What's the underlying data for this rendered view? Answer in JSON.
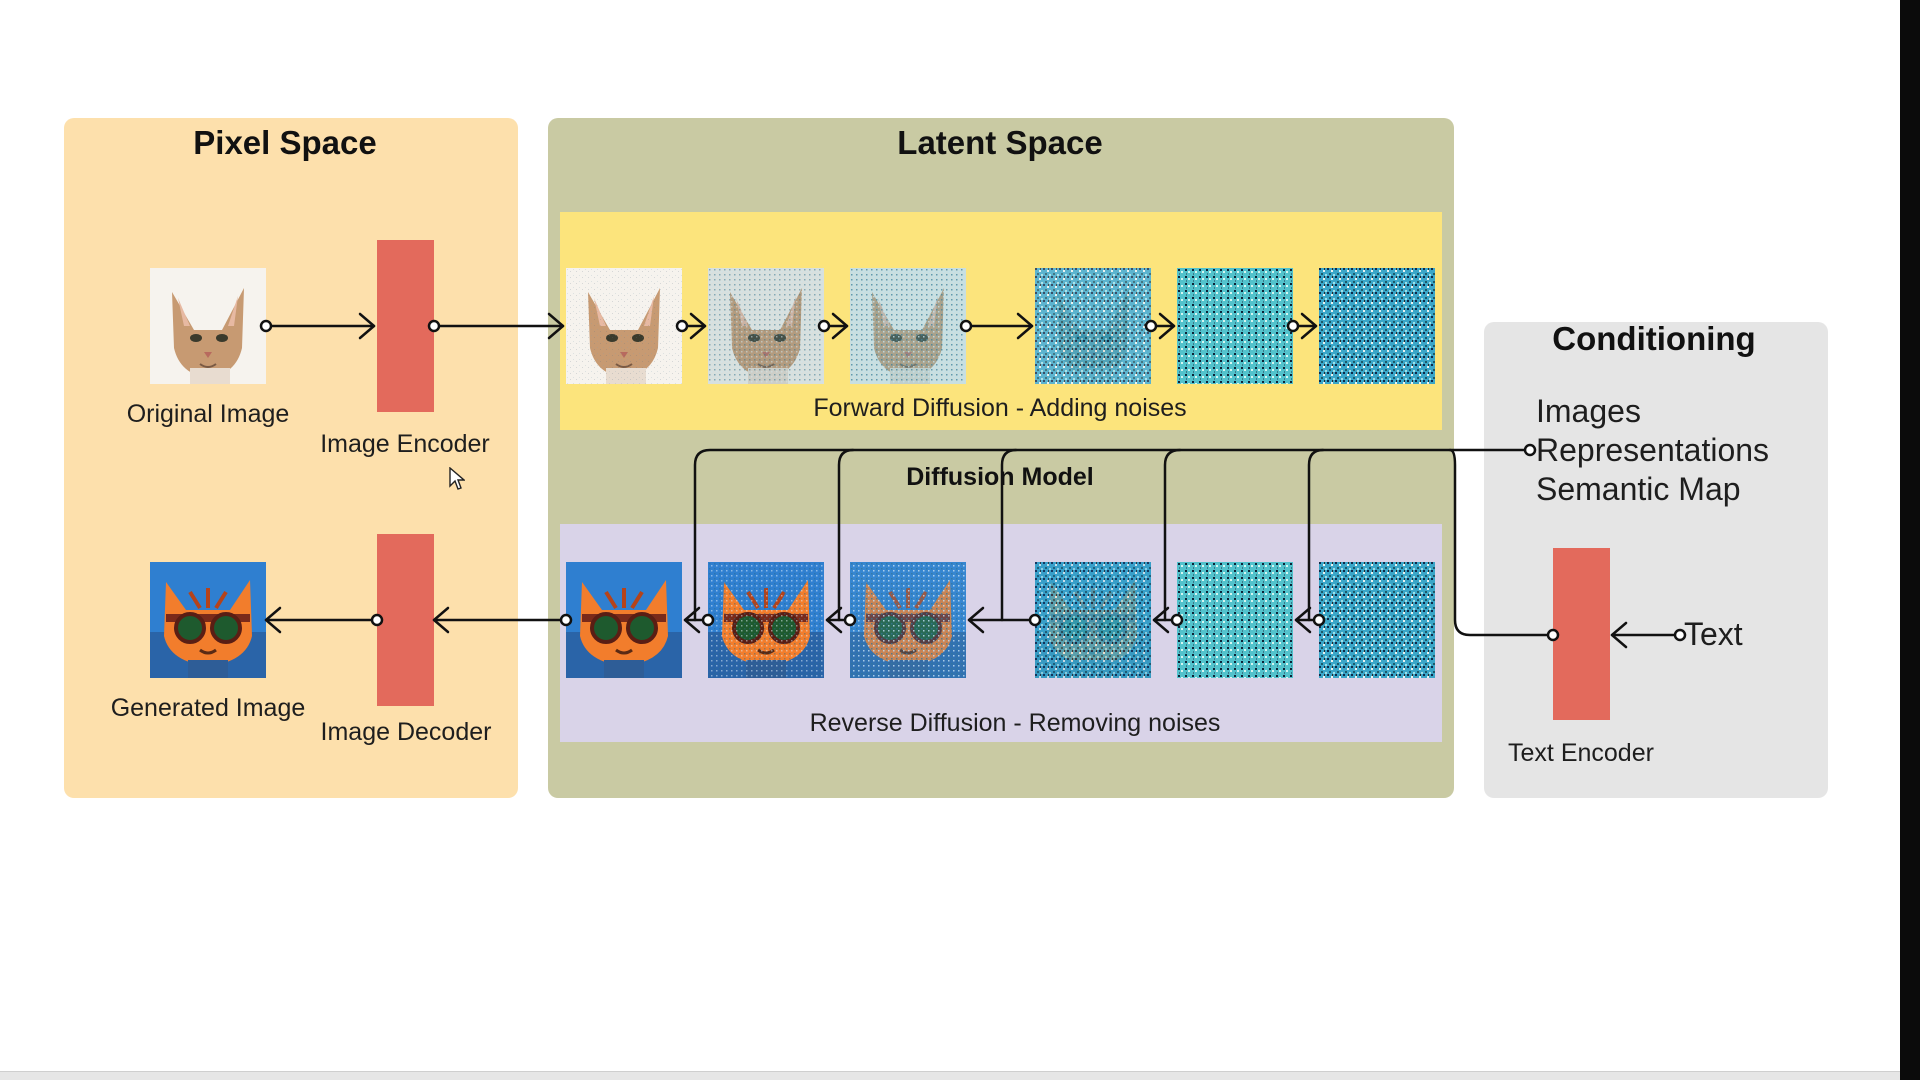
{
  "panels": {
    "pixel_space": "Pixel Space",
    "latent_space": "Latent Space",
    "conditioning": "Conditioning"
  },
  "labels": {
    "original_image": "Original Image",
    "image_encoder": "Image Encoder",
    "generated_image": "Generated Image",
    "image_decoder": "Image Decoder",
    "forward_diffusion": "Forward Diffusion - Adding noises",
    "reverse_diffusion": "Reverse Diffusion - Removing noises",
    "diffusion_model": "Diffusion Model",
    "text_encoder": "Text Encoder",
    "text_input": "Text"
  },
  "conditioning_items": [
    "Images",
    "Representations",
    "Semantic Map"
  ],
  "colors": {
    "pixel_bg": "#fde0ac",
    "latent_bg": "#c9caa3",
    "forward_band": "#fce47c",
    "reverse_band": "#d9d3e8",
    "conditioning_bg": "#e5e5e5",
    "block": "#e36a5c"
  }
}
